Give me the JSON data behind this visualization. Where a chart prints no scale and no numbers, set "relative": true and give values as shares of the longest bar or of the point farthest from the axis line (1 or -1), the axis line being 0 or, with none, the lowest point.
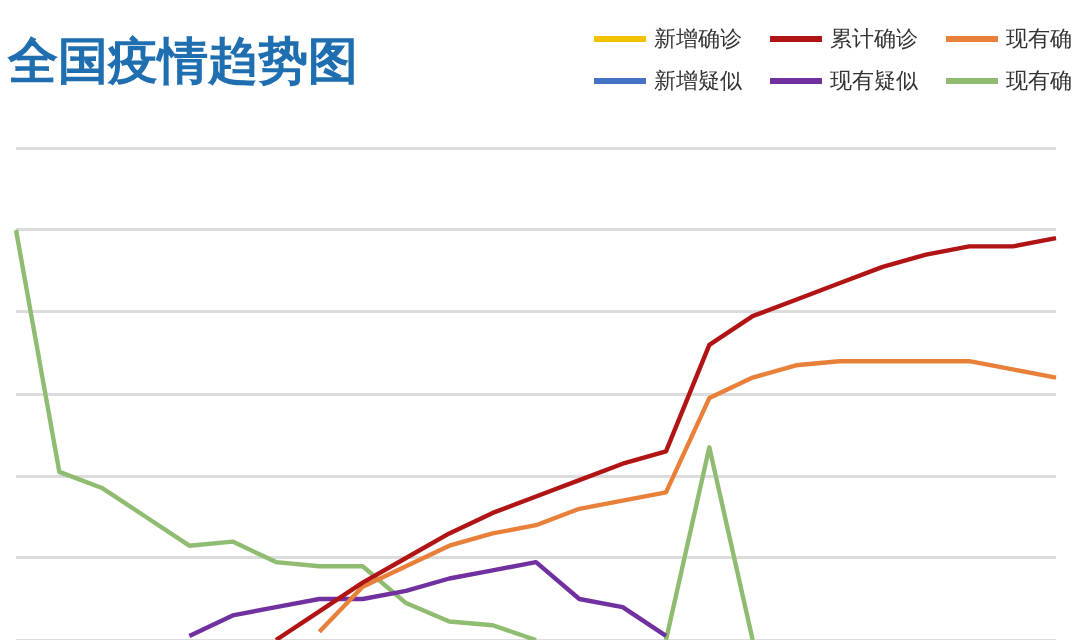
{
  "chart_data": {
    "type": "line",
    "title": "全国疫情趋势图",
    "relative": true,
    "grid": "y",
    "legend": "top right",
    "marker": "none",
    "categories": [
      null,
      null,
      null,
      null,
      null,
      null,
      null,
      null,
      null,
      null,
      null,
      null,
      null,
      null,
      null,
      null,
      null,
      null,
      null,
      null,
      null,
      null,
      null,
      null,
      null
    ],
    "series": [
      {
        "name": "新增确诊",
        "color": "#f2c200",
        "values": [
          null,
          null,
          null,
          null,
          null,
          null,
          null,
          null,
          null,
          null,
          null,
          null,
          null,
          null,
          null,
          null,
          null,
          null,
          null,
          null,
          null,
          null,
          null,
          null,
          null
        ]
      },
      {
        "name": "累计确诊",
        "color": "#b01414",
        "values": [
          null,
          null,
          null,
          null,
          null,
          null,
          0,
          0.07,
          0.14,
          0.2,
          0.26,
          0.31,
          0.35,
          0.39,
          0.43,
          0.46,
          0.72,
          0.79,
          0.83,
          0.87,
          0.91,
          0.94,
          0.96,
          0.96,
          0.98
        ]
      },
      {
        "name": "现有确",
        "color": "#e8803a",
        "values": [
          null,
          null,
          null,
          null,
          null,
          null,
          null,
          0.02,
          0.13,
          0.18,
          0.23,
          0.26,
          0.28,
          0.32,
          0.34,
          0.36,
          0.59,
          0.64,
          0.67,
          0.68,
          0.68,
          0.68,
          0.68,
          0.66,
          0.64
        ]
      },
      {
        "name": "新增疑似",
        "color": "#4472c4",
        "values": [
          null,
          null,
          null,
          null,
          null,
          null,
          null,
          null,
          null,
          null,
          null,
          null,
          null,
          null,
          null,
          null,
          null,
          null,
          null,
          null,
          null,
          null,
          null,
          null,
          null
        ]
      },
      {
        "name": "现有疑似",
        "color": "#7030a0",
        "values": [
          null,
          null,
          null,
          null,
          0.01,
          0.06,
          0.08,
          0.1,
          0.1,
          0.12,
          0.15,
          0.17,
          0.19,
          0.1,
          0.08,
          0.01,
          null,
          null,
          null,
          null,
          null,
          null,
          null,
          null,
          null
        ]
      },
      {
        "name": "现有确",
        "color": "#8fbc70",
        "values": [
          1,
          0.41,
          0.37,
          0.3,
          0.23,
          0.24,
          0.19,
          0.18,
          0.18,
          0.09,
          0.045,
          0.036,
          0,
          null,
          null,
          0,
          0.47,
          0,
          null,
          null,
          null,
          null,
          null,
          null,
          null
        ]
      }
    ]
  }
}
